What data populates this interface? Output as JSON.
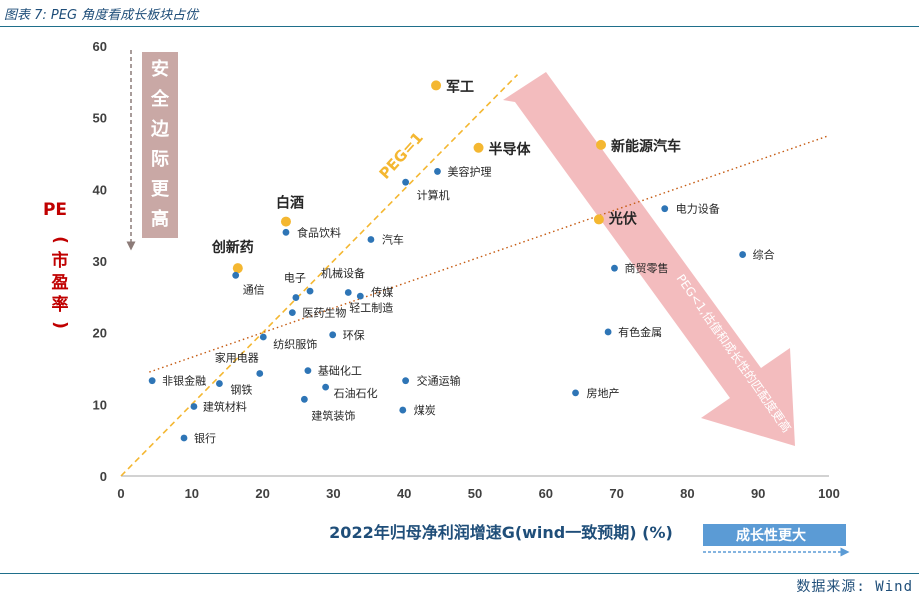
{
  "header": {
    "title": "图表 7: PEG 角度看成长板块占优"
  },
  "footer": {
    "source": "数据来源: Wind"
  },
  "annotations": {
    "safety": "安全边际更高",
    "growth": "成长性更大",
    "peg_line": "PEG=1",
    "peg_note": "PEG<1,估值和成长性的匹配度更高"
  },
  "colors": {
    "axis_blue": "#1f4e79",
    "dot_blue": "#2e75b6",
    "highlight": "#f4b731",
    "pe_red": "#c00000",
    "arrow_pink": "#f2b8bb",
    "arrow_grey": "#c9a8a5"
  },
  "chart_data": {
    "type": "scatter",
    "title": "PEG 角度看成长板块占优",
    "xlabel": "2022年归母净利润增速G(wind一致预期) (%)",
    "ylabel": "PE (市盈率)",
    "xlim": [
      0,
      100
    ],
    "ylim": [
      0,
      60
    ],
    "xticks": [
      "0",
      "10",
      "20",
      "30",
      "40",
      "50",
      "60",
      "70",
      "80",
      "90",
      "100"
    ],
    "yticks": [
      "0",
      "10",
      "20",
      "30",
      "40",
      "50",
      "60"
    ],
    "points": [
      {
        "name": "军工",
        "x": 44.5,
        "y": 54.5,
        "highlight": true
      },
      {
        "name": "半导体",
        "x": 50.5,
        "y": 45.8,
        "highlight": true
      },
      {
        "name": "新能源汽车",
        "x": 67.8,
        "y": 46.2,
        "highlight": true
      },
      {
        "name": "白酒",
        "x": 23.3,
        "y": 35.5,
        "highlight": true
      },
      {
        "name": "光伏",
        "x": 67.5,
        "y": 35.8,
        "highlight": true
      },
      {
        "name": "创新药",
        "x": 16.5,
        "y": 29.0,
        "highlight": true
      },
      {
        "name": "美容护理",
        "x": 44.7,
        "y": 42.5,
        "highlight": false
      },
      {
        "name": "计算机",
        "x": 40.2,
        "y": 41.0,
        "highlight": false
      },
      {
        "name": "食品饮料",
        "x": 23.3,
        "y": 34.0,
        "highlight": false
      },
      {
        "name": "汽车",
        "x": 35.3,
        "y": 33.0,
        "highlight": false
      },
      {
        "name": "电力设备",
        "x": 76.8,
        "y": 37.3,
        "highlight": false
      },
      {
        "name": "综合",
        "x": 87.8,
        "y": 30.9,
        "highlight": false
      },
      {
        "name": "通信",
        "x": 16.2,
        "y": 28.0,
        "highlight": false
      },
      {
        "name": "电子",
        "x": 24.7,
        "y": 24.9,
        "highlight": false
      },
      {
        "name": "机械设备",
        "x": 26.7,
        "y": 25.8,
        "highlight": false
      },
      {
        "name": "传媒",
        "x": 33.8,
        "y": 25.1,
        "highlight": false
      },
      {
        "name": "医药生物",
        "x": 24.2,
        "y": 22.8,
        "highlight": false
      },
      {
        "name": "轻工制造",
        "x": 32.1,
        "y": 25.6,
        "highlight": false
      },
      {
        "name": "商贸零售",
        "x": 69.7,
        "y": 29.0,
        "highlight": false
      },
      {
        "name": "有色金属",
        "x": 68.8,
        "y": 20.1,
        "highlight": false
      },
      {
        "name": "环保",
        "x": 29.9,
        "y": 19.7,
        "highlight": false
      },
      {
        "name": "纺织服饰",
        "x": 20.1,
        "y": 19.4,
        "highlight": false
      },
      {
        "name": "家用电器",
        "x": 19.6,
        "y": 14.3,
        "highlight": false
      },
      {
        "name": "基础化工",
        "x": 26.4,
        "y": 14.7,
        "highlight": false
      },
      {
        "name": "非银金融",
        "x": 4.4,
        "y": 13.3,
        "highlight": false
      },
      {
        "name": "钢铁",
        "x": 13.9,
        "y": 12.9,
        "highlight": false
      },
      {
        "name": "石油石化",
        "x": 28.9,
        "y": 12.4,
        "highlight": false
      },
      {
        "name": "交通运输",
        "x": 40.2,
        "y": 13.3,
        "highlight": false
      },
      {
        "name": "建筑材料",
        "x": 10.3,
        "y": 9.7,
        "highlight": false
      },
      {
        "name": "建筑装饰",
        "x": 25.9,
        "y": 10.7,
        "highlight": false
      },
      {
        "name": "煤炭",
        "x": 39.8,
        "y": 9.2,
        "highlight": false
      },
      {
        "name": "房地产",
        "x": 64.2,
        "y": 11.6,
        "highlight": false
      },
      {
        "name": "银行",
        "x": 8.9,
        "y": 5.3,
        "highlight": false
      }
    ],
    "reference_lines": [
      {
        "name": "PEG=1",
        "type": "dashed",
        "from": [
          0,
          0
        ],
        "to": [
          56,
          56
        ]
      },
      {
        "name": "trend",
        "type": "dotted",
        "from": [
          4,
          14.5
        ],
        "to": [
          100,
          47.5
        ]
      }
    ]
  }
}
